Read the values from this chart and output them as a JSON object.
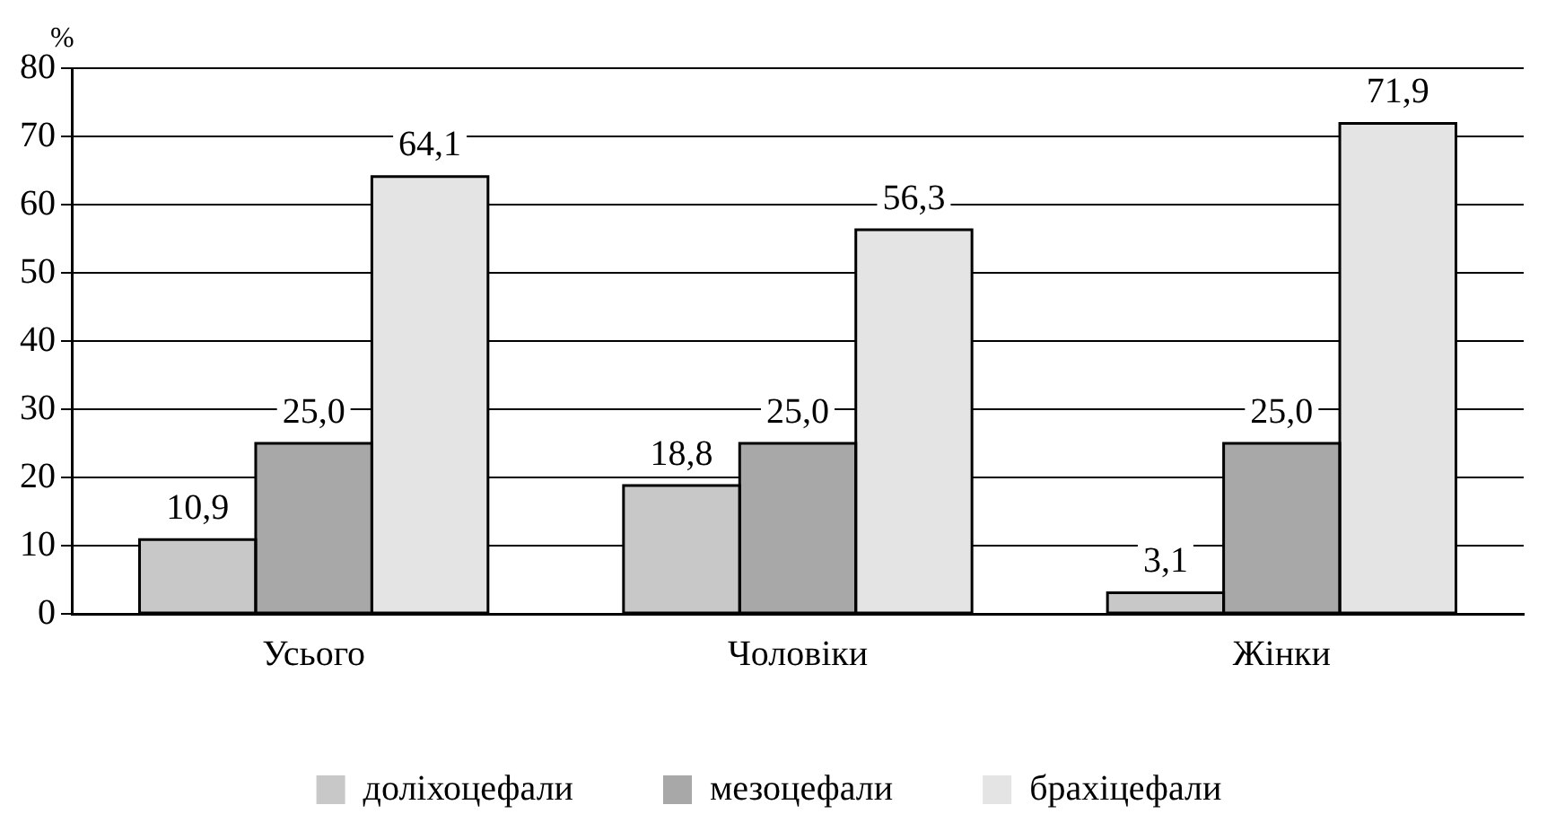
{
  "chart_data": {
    "type": "bar",
    "ylabel": "%",
    "categories": [
      "Усього",
      "Чоловіки",
      "Жінки"
    ],
    "series": [
      {
        "name": "доліхоцефали",
        "color": "#c8c8c8",
        "values": [
          10.9,
          18.8,
          3.1
        ],
        "value_labels": [
          "10,9",
          "18,8",
          "3,1"
        ]
      },
      {
        "name": "мезоцефали",
        "color": "#a8a8a8",
        "values": [
          25.0,
          25.0,
          25.0
        ],
        "value_labels": [
          "25,0",
          "25,0",
          "25,0"
        ]
      },
      {
        "name": "брахіцефали",
        "color": "#e4e4e4",
        "values": [
          64.1,
          56.3,
          71.9
        ],
        "value_labels": [
          "64,1",
          "56,3",
          "71,9"
        ]
      }
    ],
    "ylim": [
      0,
      80
    ],
    "yticks": [
      0,
      10,
      20,
      30,
      40,
      50,
      60,
      70,
      80
    ],
    "grid": "y",
    "legend": "bottom"
  }
}
